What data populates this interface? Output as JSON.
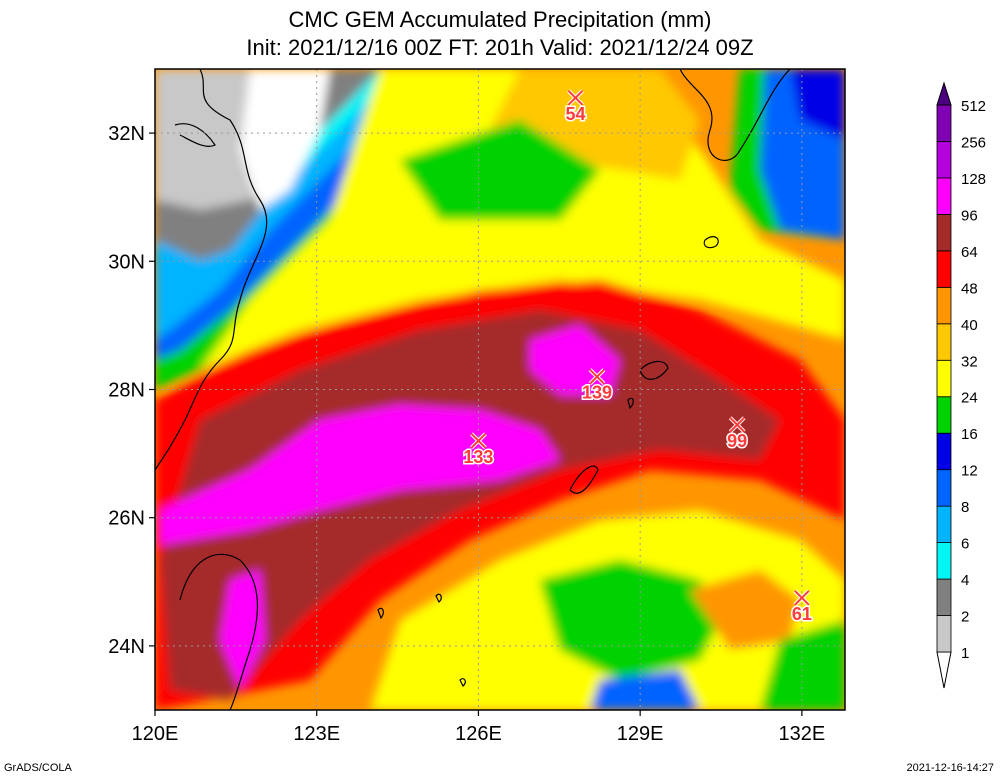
{
  "title": {
    "line1": "CMC GEM Accumulated Precipitation (mm)",
    "line2": "Init: 2021/12/16 00Z  FT: 201h  Valid: 2021/12/24 09Z"
  },
  "map": {
    "lon_range": [
      120,
      132.8
    ],
    "lat_range": [
      23,
      33
    ],
    "x_ticks": [
      {
        "lon": 120,
        "label": "120E"
      },
      {
        "lon": 123,
        "label": "123E"
      },
      {
        "lon": 126,
        "label": "126E"
      },
      {
        "lon": 129,
        "label": "129E"
      },
      {
        "lon": 132,
        "label": "132E"
      }
    ],
    "y_ticks": [
      {
        "lat": 24,
        "label": "24N"
      },
      {
        "lat": 26,
        "label": "26N"
      },
      {
        "lat": 28,
        "label": "28N"
      },
      {
        "lat": 30,
        "label": "30N"
      },
      {
        "lat": 32,
        "label": "32N"
      }
    ],
    "maxima": [
      {
        "lon": 127.8,
        "lat": 32.55,
        "value": "54"
      },
      {
        "lon": 128.2,
        "lat": 28.2,
        "value": "139"
      },
      {
        "lon": 126.0,
        "lat": 27.2,
        "value": "133"
      },
      {
        "lon": 130.8,
        "lat": 27.45,
        "value": "99"
      },
      {
        "lon": 132.0,
        "lat": 24.75,
        "value": "61"
      }
    ]
  },
  "legend": {
    "levels": [
      "1",
      "2",
      "4",
      "6",
      "8",
      "12",
      "16",
      "24",
      "32",
      "40",
      "48",
      "64",
      "96",
      "128",
      "256",
      "512"
    ],
    "colors": [
      "#ffffff",
      "#c8c8c8",
      "#808080",
      "#00f5f5",
      "#00b4ff",
      "#0064ff",
      "#0000e6",
      "#00d200",
      "#ffff00",
      "#ffc800",
      "#ff9600",
      "#ff0000",
      "#a52a2a",
      "#ff00ff",
      "#b400dc",
      "#8200b4",
      "#4b0082"
    ]
  },
  "footer": {
    "left": "GrADS/COLA",
    "right": "2021-12-16-14:27"
  }
}
